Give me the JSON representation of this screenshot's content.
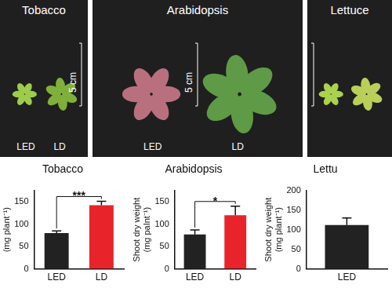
{
  "photo_panels": [
    {
      "title": "Tobacco",
      "labels": [
        "LED",
        "LD"
      ],
      "scale_label": "5 cm"
    },
    {
      "title": "Arabidopsis",
      "labels": [
        "LED",
        "LD"
      ],
      "scale_label": "5 cm"
    },
    {
      "title": "Lettuce"
    }
  ],
  "chart_data": [
    {
      "type": "bar",
      "title": "Tobacco",
      "y_label": "(mg plant⁻¹)",
      "categories": [
        "LED",
        "LD"
      ],
      "values": [
        80,
        142
      ],
      "errors": [
        5,
        9
      ],
      "colors": [
        "#222222",
        "#e8242a"
      ],
      "ylim": [
        0,
        175
      ],
      "yticks": [
        0,
        50,
        100,
        150
      ],
      "grid": false,
      "significance": {
        "label": "***",
        "between": [
          "LED",
          "LD"
        ]
      }
    },
    {
      "type": "bar",
      "title": "Arabidopsis",
      "y_label": "Shoot dry weight (mg paInt⁻¹)",
      "categories": [
        "LED",
        "LD"
      ],
      "values": [
        77,
        120
      ],
      "errors": [
        10,
        20
      ],
      "colors": [
        "#222222",
        "#e8242a"
      ],
      "ylim": [
        0,
        175
      ],
      "yticks": [
        0,
        50,
        100,
        150
      ],
      "grid": false,
      "significance": {
        "label": "*",
        "between": [
          "LED",
          "LD"
        ]
      }
    },
    {
      "type": "bar",
      "title": "Lettu",
      "y_label": "Shoot dry weight (mg plant⁻¹)",
      "categories": [
        "LED"
      ],
      "values": [
        112
      ],
      "errors": [
        18
      ],
      "colors": [
        "#222222"
      ],
      "ylim": [
        0,
        200
      ],
      "yticks": [
        0,
        50,
        100,
        150,
        200
      ],
      "grid": false
    }
  ]
}
